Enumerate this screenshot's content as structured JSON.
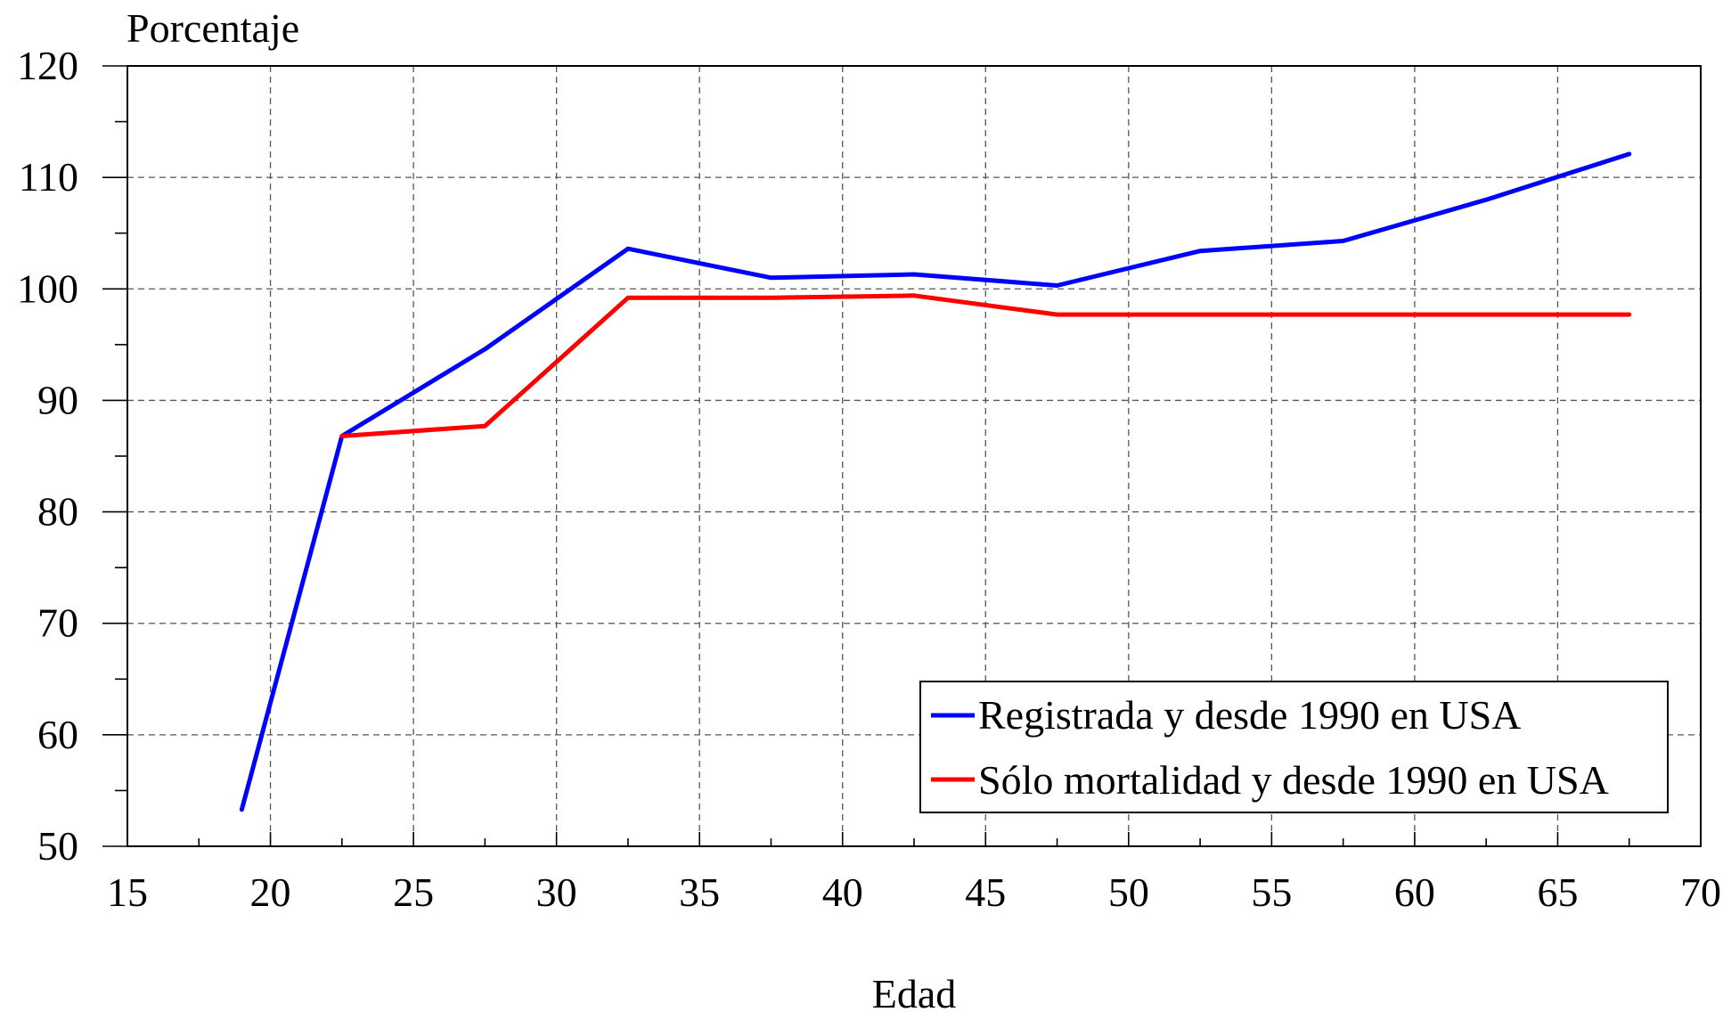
{
  "chart_data": {
    "type": "line",
    "ylabel": "Porcentaje",
    "xlabel": "Edad",
    "xlim": [
      15,
      70
    ],
    "ylim": [
      50,
      120
    ],
    "xticks": [
      15,
      20,
      25,
      30,
      35,
      40,
      45,
      50,
      55,
      60,
      65,
      70
    ],
    "yticks": [
      50,
      60,
      70,
      80,
      90,
      100,
      110,
      120
    ],
    "grid": true,
    "legend_position": "bottom-right",
    "series": [
      {
        "name": "Registrada y desde 1990 en USA",
        "color": "#0000ff",
        "x": [
          19,
          22.5,
          27.5,
          32.5,
          37.5,
          42.5,
          47.5,
          52.5,
          57.5,
          62.5,
          67.5
        ],
        "y": [
          53.3,
          86.8,
          94.6,
          103.6,
          101.0,
          101.3,
          100.3,
          103.4,
          104.3,
          108.0,
          112.1
        ]
      },
      {
        "name": "Sólo mortalidad y desde 1990 en USA",
        "color": "#ff0000",
        "x": [
          22.5,
          27.5,
          32.5,
          37.5,
          42.5,
          47.5,
          52.5,
          57.5,
          62.5,
          67.5
        ],
        "y": [
          86.8,
          87.7,
          99.2,
          99.2,
          99.4,
          97.7,
          97.7,
          97.7,
          97.7,
          97.7
        ]
      }
    ]
  }
}
